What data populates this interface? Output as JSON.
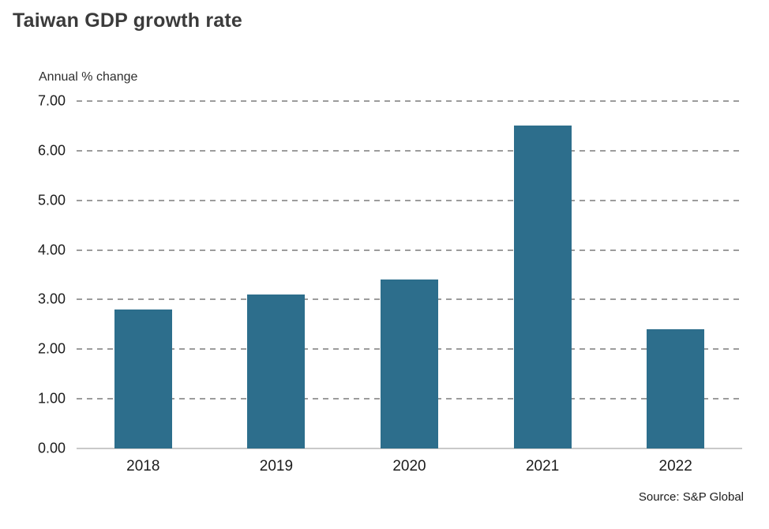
{
  "page": {
    "title": "Taiwan GDP growth rate",
    "source": "Source: S&P Global"
  },
  "chart_data": {
    "type": "bar",
    "title": "Taiwan GDP growth rate",
    "categories": [
      "2018",
      "2019",
      "2020",
      "2021",
      "2022"
    ],
    "values": [
      2.8,
      3.1,
      3.4,
      6.5,
      2.4
    ],
    "xlabel": "",
    "ylabel": "Annual % change",
    "ylim": [
      0,
      7
    ],
    "yticks": [
      "0.00",
      "1.00",
      "2.00",
      "3.00",
      "4.00",
      "5.00",
      "6.00",
      "7.00"
    ],
    "ytick_format": "2-decimals",
    "grid": "horizontal-dashed",
    "legend": "none",
    "bar_color": "#2d6e8c",
    "gridline_color": "#9c9c9c",
    "baseline_color": "#c9c9c9",
    "title_color": "#3b3b3b",
    "source": "Source: S&P Global"
  }
}
